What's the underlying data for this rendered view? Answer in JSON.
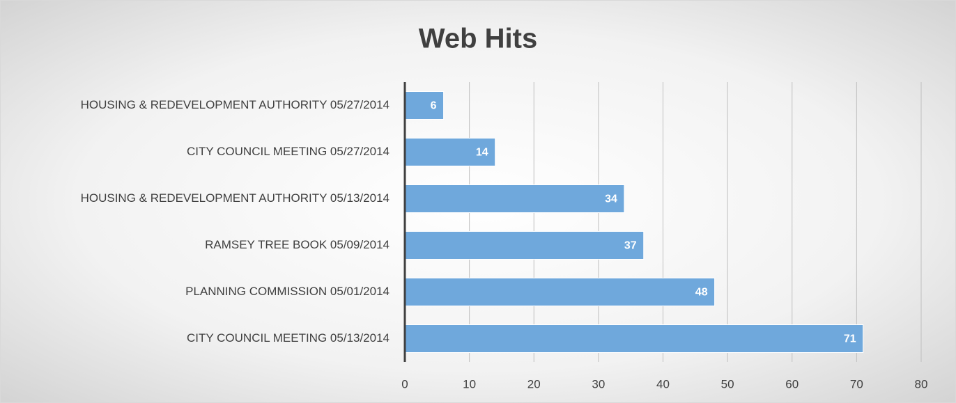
{
  "chart_data": {
    "type": "bar",
    "orientation": "horizontal",
    "title": "Web Hits",
    "categories": [
      "HOUSING & REDEVELOPMENT AUTHORITY 05/27/2014",
      "CITY COUNCIL MEETING 05/27/2014",
      "HOUSING & REDEVELOPMENT AUTHORITY 05/13/2014",
      "RAMSEY TREE BOOK 05/09/2014",
      "PLANNING COMMISSION 05/01/2014",
      "CITY COUNCIL MEETING 05/13/2014"
    ],
    "values": [
      6,
      14,
      34,
      37,
      48,
      71
    ],
    "color": "#6fa8dc",
    "xlim": [
      0,
      80
    ],
    "xticks": [
      0,
      10,
      20,
      30,
      40,
      50,
      60,
      70,
      80
    ],
    "grid": true
  }
}
